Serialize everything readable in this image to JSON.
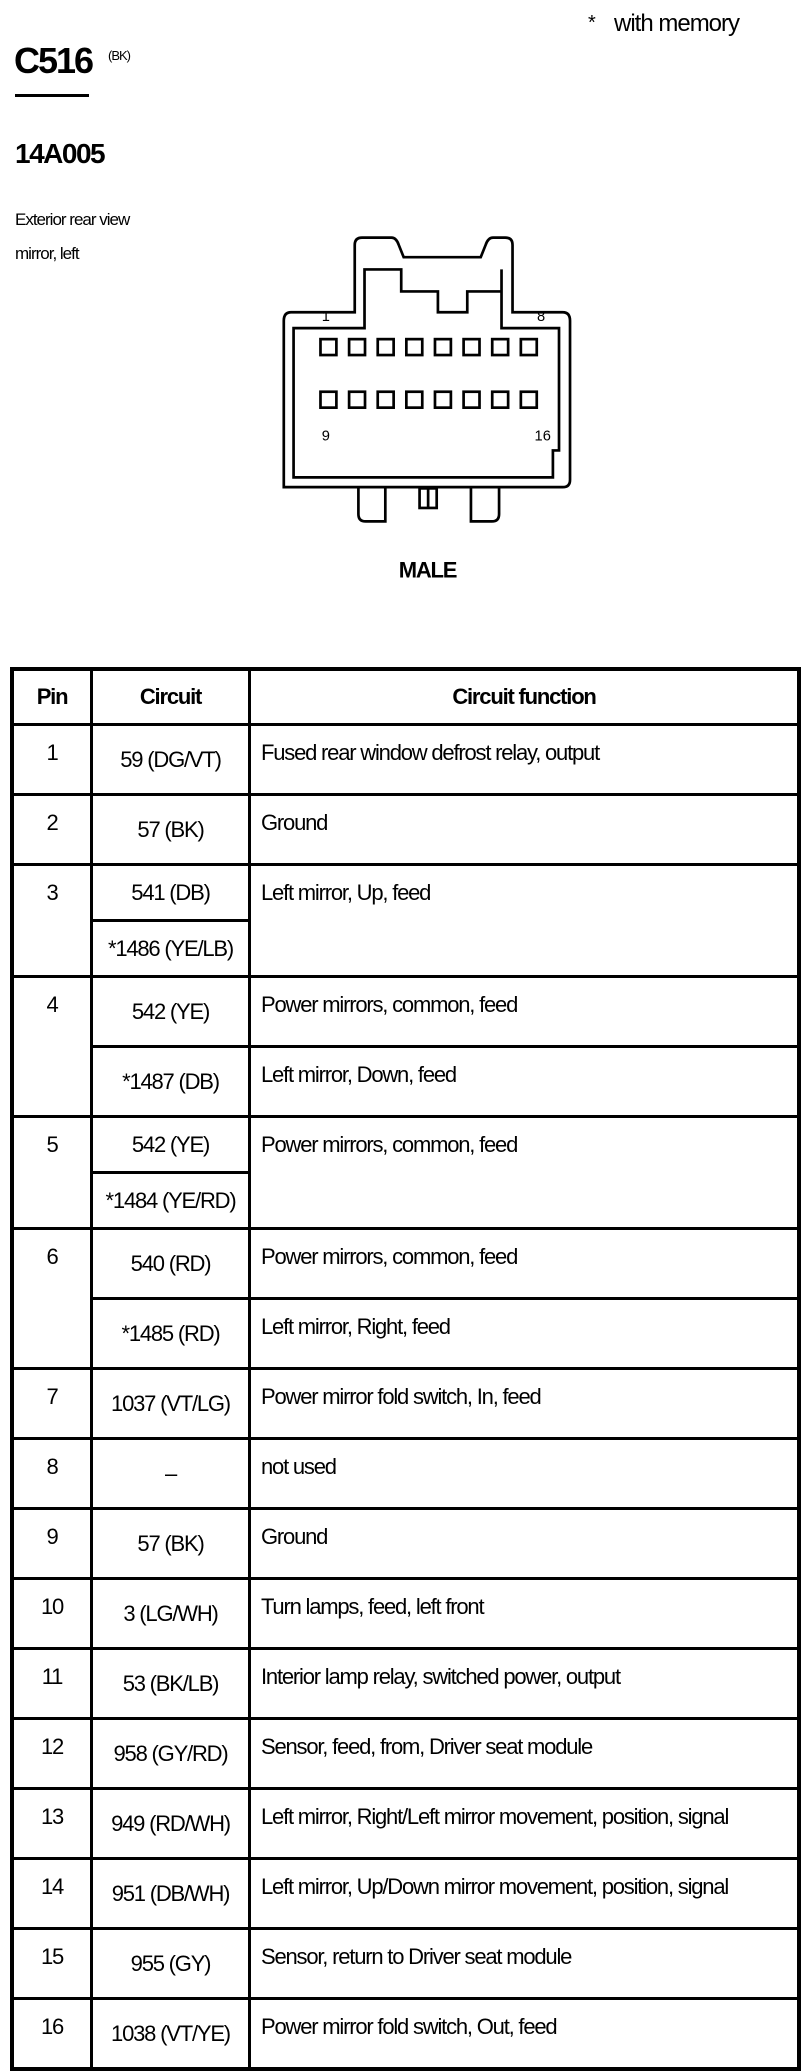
{
  "note": {
    "asterisk": "*",
    "text": "with memory"
  },
  "connector": {
    "id": "C516",
    "color": "(BK)",
    "part_number": "14A005",
    "description_line1": "Exterior rear view",
    "description_line2": "mirror, left",
    "pin_labels": {
      "top_left": "1",
      "top_right": "8",
      "bottom_left": "9",
      "bottom_right": "16"
    },
    "gender": "MALE"
  },
  "table": {
    "headers": [
      "Pin",
      "Circuit",
      "Circuit function"
    ],
    "rows": [
      {
        "pin": "1",
        "circuits": [
          "59 (DG/VT)"
        ],
        "functions": [
          "Fused rear window defrost relay, output"
        ]
      },
      {
        "pin": "2",
        "circuits": [
          "57 (BK)"
        ],
        "functions": [
          "Ground"
        ]
      },
      {
        "pin": "3",
        "circuits": [
          "541 (DB)",
          "*1486 (YE/LB)"
        ],
        "functions": [
          "Left mirror, Up, feed"
        ]
      },
      {
        "pin": "4",
        "circuits": [
          "542 (YE)",
          "*1487 (DB)"
        ],
        "functions": [
          "Power mirrors, common, feed",
          "Left mirror, Down, feed"
        ]
      },
      {
        "pin": "5",
        "circuits": [
          "542 (YE)",
          "*1484 (YE/RD)"
        ],
        "functions": [
          "Power mirrors, common, feed"
        ]
      },
      {
        "pin": "6",
        "circuits": [
          "540 (RD)",
          "*1485 (RD)"
        ],
        "functions": [
          "Power mirrors, common, feed",
          "Left mirror, Right, feed"
        ]
      },
      {
        "pin": "7",
        "circuits": [
          "1037 (VT/LG)"
        ],
        "functions": [
          "Power mirror fold switch, In, feed"
        ]
      },
      {
        "pin": "8",
        "circuits": [
          "–"
        ],
        "functions": [
          "not used"
        ]
      },
      {
        "pin": "9",
        "circuits": [
          "57 (BK)"
        ],
        "functions": [
          "Ground"
        ]
      },
      {
        "pin": "10",
        "circuits": [
          "3 (LG/WH)"
        ],
        "functions": [
          "Turn lamps, feed, left front"
        ]
      },
      {
        "pin": "11",
        "circuits": [
          "53 (BK/LB)"
        ],
        "functions": [
          "Interior lamp relay, switched power, output"
        ]
      },
      {
        "pin": "12",
        "circuits": [
          "958 (GY/RD)"
        ],
        "functions": [
          "Sensor, feed, from, Driver seat module"
        ]
      },
      {
        "pin": "13",
        "circuits": [
          "949 (RD/WH)"
        ],
        "functions": [
          "Left mirror, Right/Left mirror movement, position, signal"
        ]
      },
      {
        "pin": "14",
        "circuits": [
          "951 (DB/WH)"
        ],
        "functions": [
          "Left mirror, Up/Down mirror movement, position, signal"
        ]
      },
      {
        "pin": "15",
        "circuits": [
          "955 (GY)"
        ],
        "functions": [
          "Sensor, return to Driver seat module"
        ]
      },
      {
        "pin": "16",
        "circuits": [
          "1038 (VT/YE)"
        ],
        "functions": [
          "Power mirror fold switch, Out, feed"
        ]
      }
    ]
  }
}
